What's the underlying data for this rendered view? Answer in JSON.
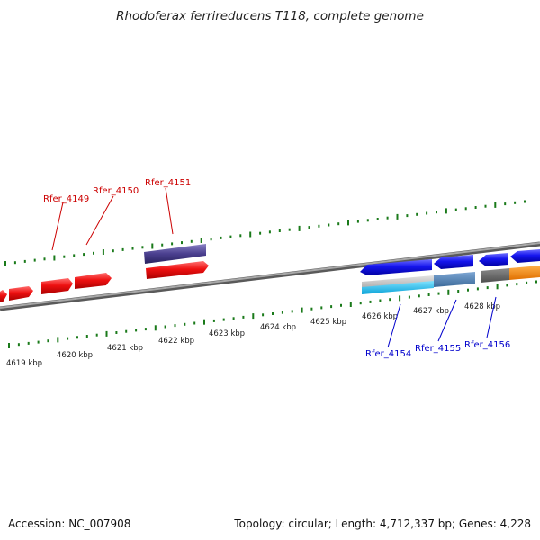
{
  "title": "Rhodoferax ferrireducens T118, complete genome",
  "accession": "Accession: NC_007908",
  "summary": "Topology: circular; Length: 4,712,337 bp; Genes: 4,228",
  "colors": {
    "backbone": "#8a8a8a",
    "tick": "#1a7a1a",
    "red_gene": "#ee1111",
    "blue_gene": "#1111ee",
    "purple_gene": "#4a3f8f",
    "label_red": "#cc0000",
    "label_blue": "#0000cc"
  },
  "scale_labels": [
    "4619 kbp",
    "4620 kbp",
    "4621 kbp",
    "4622 kbp",
    "4623 kbp",
    "4624 kbp",
    "4625 kbp",
    "4626 kbp",
    "4627 kbp",
    "4628 kbp"
  ],
  "genes_top": [
    {
      "name": "Rfer_4149",
      "color": "label_red"
    },
    {
      "name": "Rfer_4150",
      "color": "label_red"
    },
    {
      "name": "Rfer_4151",
      "color": "label_red"
    }
  ],
  "genes_bottom": [
    {
      "name": "Rfer_4154",
      "color": "label_blue"
    },
    {
      "name": "Rfer_4155",
      "color": "label_blue"
    },
    {
      "name": "Rfer_4156",
      "color": "label_blue"
    }
  ]
}
